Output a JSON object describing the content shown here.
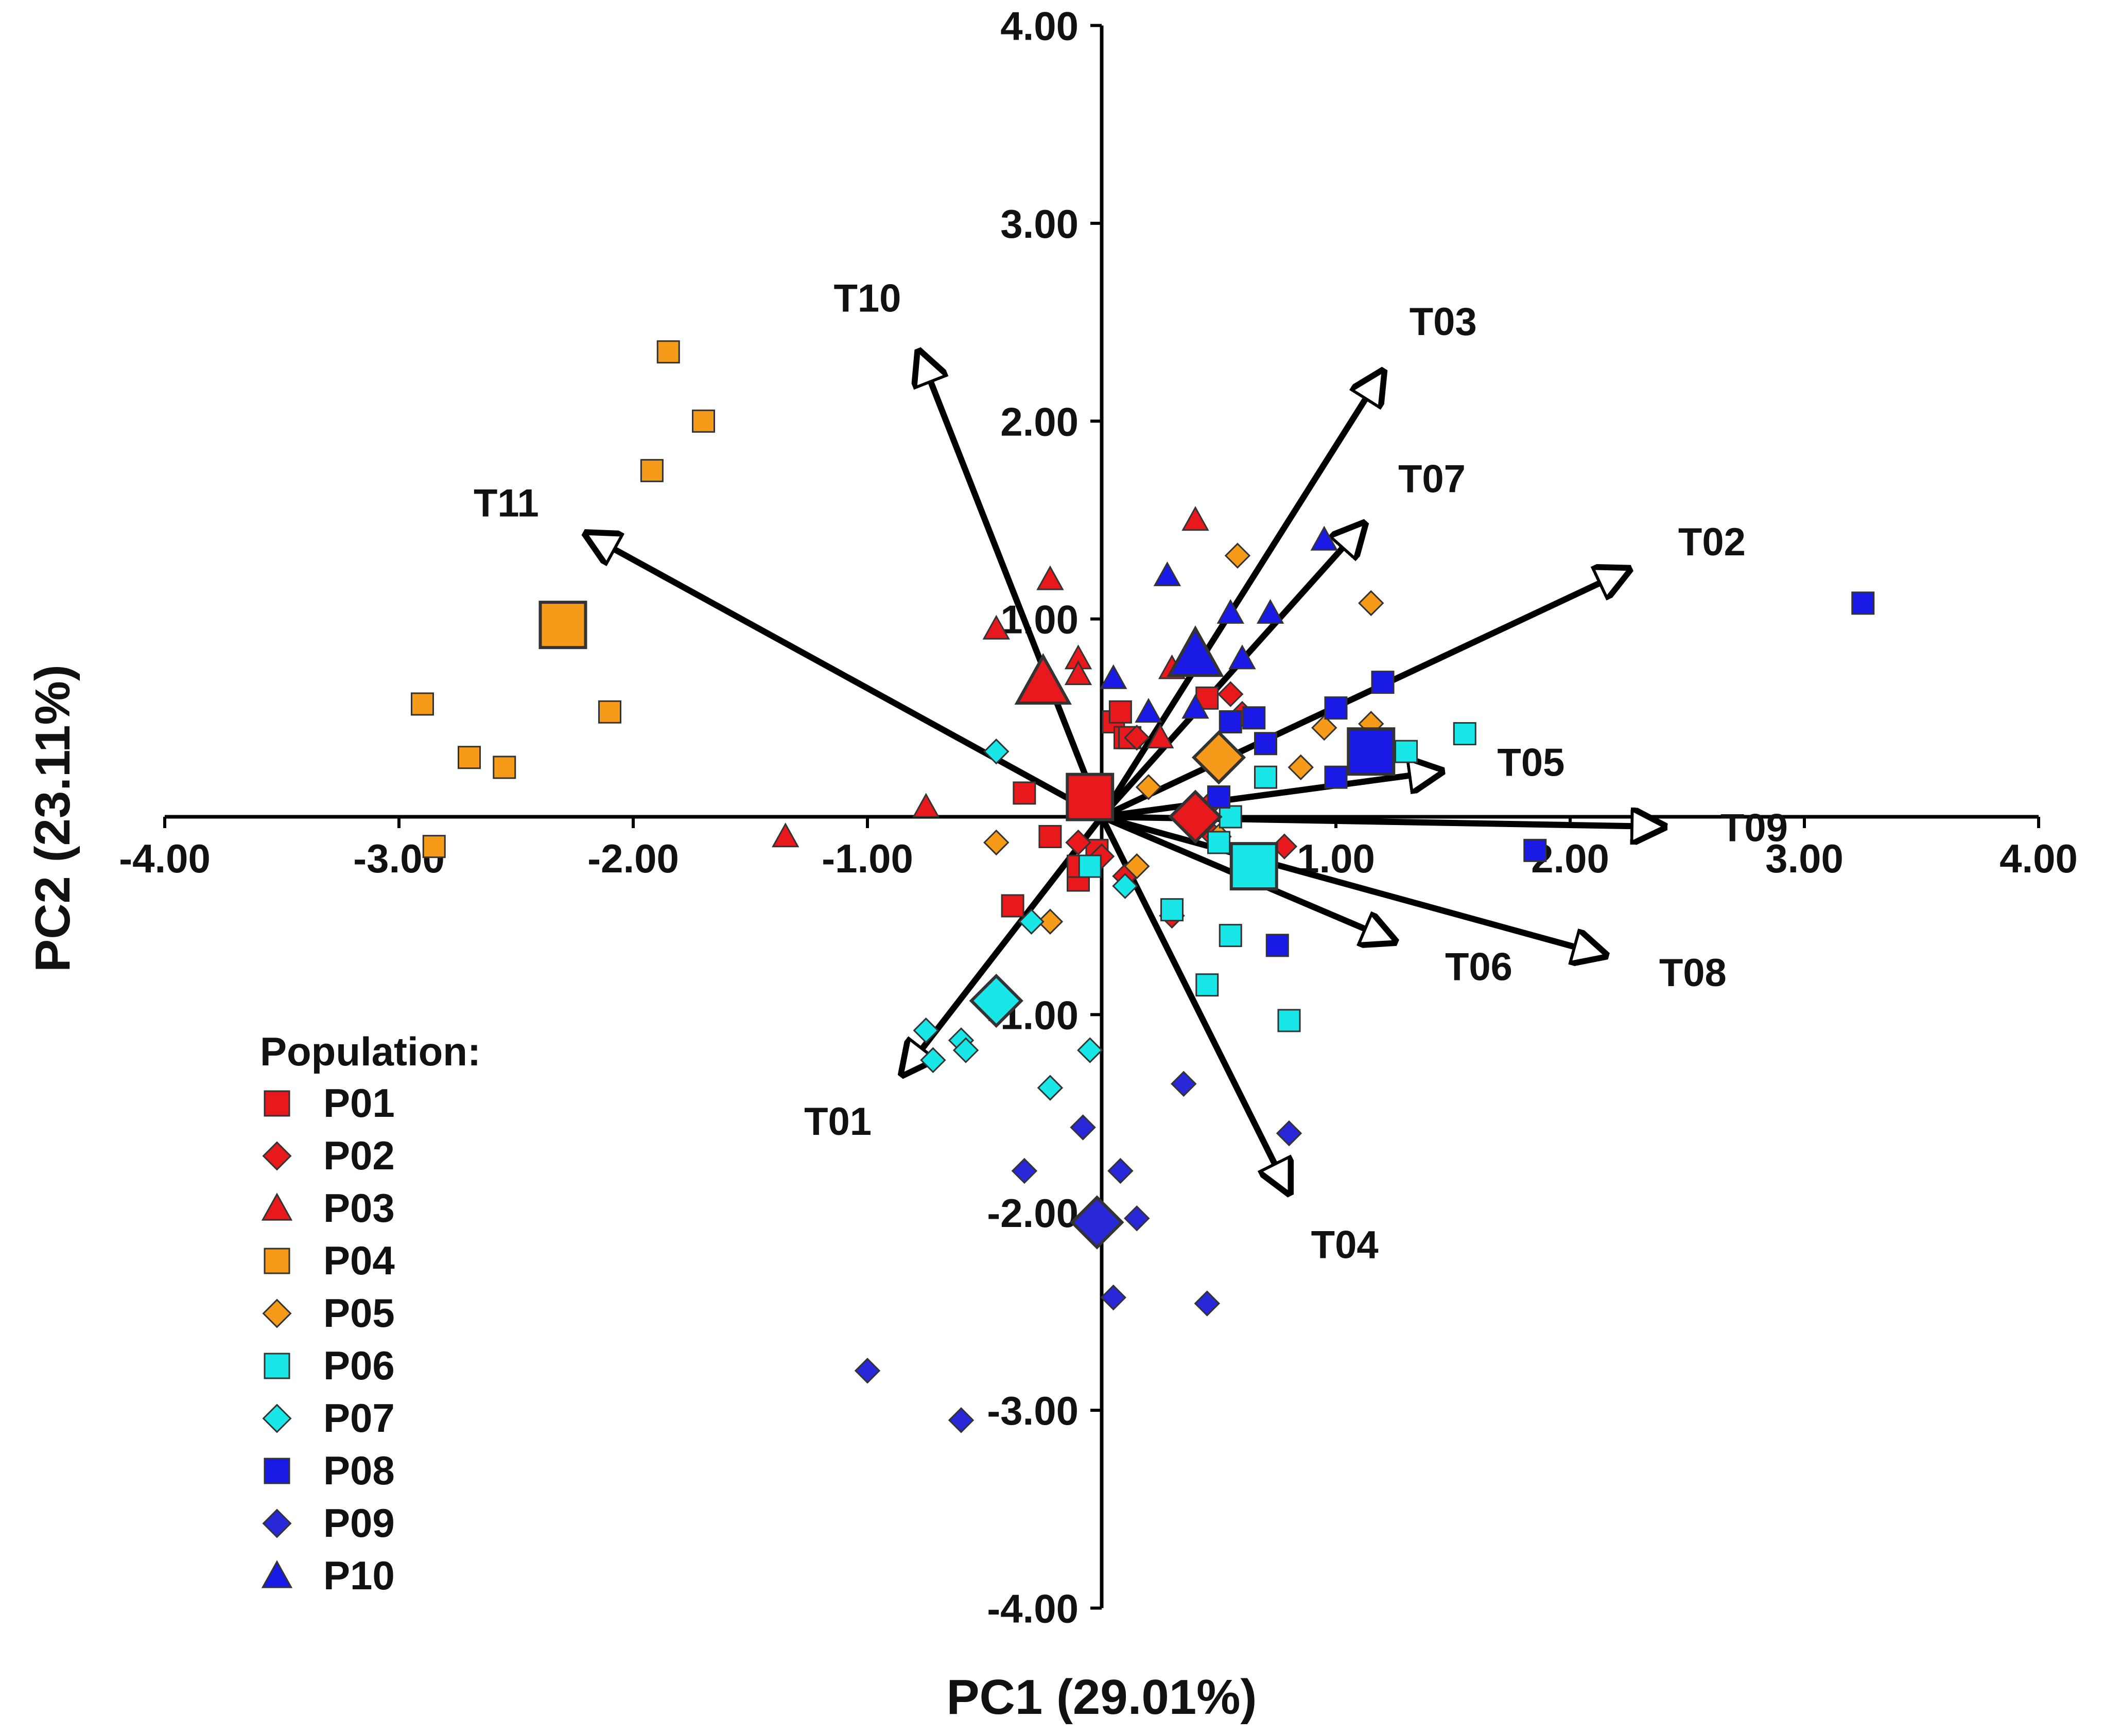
{
  "chart_data": {
    "type": "scatter",
    "subtype": "pca-biplot",
    "title": "",
    "xlabel": "PC1 (29.01%)",
    "ylabel": "PC2 (23.11%)",
    "xlim": [
      -4,
      4
    ],
    "ylim": [
      -4,
      4
    ],
    "xticks": [
      -4,
      -3,
      -2,
      -1,
      1,
      2,
      3,
      4
    ],
    "yticks": [
      4,
      3,
      2,
      1,
      -1,
      -2,
      -3,
      -4
    ],
    "tick_decimals": 2,
    "legend": {
      "title": "Population:",
      "position": "lower-left"
    },
    "vectors": [
      {
        "name": "T01",
        "x": -0.85,
        "y": -1.3
      },
      {
        "name": "T02",
        "x": 2.25,
        "y": 1.25
      },
      {
        "name": "T03",
        "x": 1.2,
        "y": 2.25
      },
      {
        "name": "T04",
        "x": 0.8,
        "y": -1.9
      },
      {
        "name": "T05",
        "x": 1.45,
        "y": 0.23
      },
      {
        "name": "T06",
        "x": 1.25,
        "y": -0.63
      },
      {
        "name": "T07",
        "x": 1.12,
        "y": 1.48
      },
      {
        "name": "T08",
        "x": 2.15,
        "y": -0.7
      },
      {
        "name": "T09",
        "x": 2.4,
        "y": -0.05
      },
      {
        "name": "T10",
        "x": -0.78,
        "y": 2.35
      },
      {
        "name": "T11",
        "x": -2.2,
        "y": 1.43
      }
    ],
    "series": [
      {
        "name": "P01",
        "marker": "square",
        "color": "#e8191c",
        "centroid": {
          "x": -0.05,
          "y": 0.1
        },
        "points": [
          [
            -0.33,
            0.12
          ],
          [
            -0.22,
            -0.1
          ],
          [
            -0.38,
            -0.45
          ],
          [
            -0.1,
            -0.32
          ],
          [
            -0.1,
            -0.25
          ],
          [
            -0.02,
            -0.17
          ],
          [
            0.05,
            0.48
          ],
          [
            0.1,
            0.4
          ],
          [
            0.08,
            0.53
          ],
          [
            0.45,
            0.6
          ],
          [
            0.12,
            0.4
          ]
        ]
      },
      {
        "name": "P02",
        "marker": "diamond",
        "color": "#e8191c",
        "centroid": {
          "x": 0.4,
          "y": 0.0
        },
        "points": [
          [
            -0.1,
            -0.13
          ],
          [
            0.0,
            -0.2
          ],
          [
            0.1,
            -0.3
          ],
          [
            0.3,
            -0.5
          ],
          [
            0.48,
            -0.1
          ],
          [
            0.78,
            -0.15
          ],
          [
            0.55,
            0.62
          ],
          [
            0.6,
            0.52
          ],
          [
            0.15,
            0.4
          ],
          [
            0.45,
            0.05
          ]
        ]
      },
      {
        "name": "P03",
        "marker": "triangle",
        "color": "#e8191c",
        "centroid": {
          "x": -0.25,
          "y": 0.68
        },
        "points": [
          [
            -0.45,
            0.95
          ],
          [
            -0.22,
            1.2
          ],
          [
            -0.1,
            0.8
          ],
          [
            -0.1,
            0.72
          ],
          [
            -0.75,
            0.05
          ],
          [
            -1.35,
            -0.1
          ],
          [
            0.4,
            1.5
          ],
          [
            0.3,
            0.75
          ],
          [
            0.25,
            0.4
          ]
        ]
      },
      {
        "name": "P04",
        "marker": "square",
        "color": "#f59b19",
        "centroid": {
          "x": -2.3,
          "y": 0.97
        },
        "points": [
          [
            -1.85,
            2.35
          ],
          [
            -1.7,
            2.0
          ],
          [
            -1.92,
            1.75
          ],
          [
            -2.1,
            0.53
          ],
          [
            -2.3,
            0.93
          ],
          [
            -2.9,
            0.57
          ],
          [
            -2.7,
            0.3
          ],
          [
            -2.55,
            0.25
          ],
          [
            -2.85,
            -0.15
          ]
        ]
      },
      {
        "name": "P05",
        "marker": "diamond",
        "color": "#f59b19",
        "centroid": {
          "x": 0.5,
          "y": 0.3
        },
        "points": [
          [
            0.58,
            1.32
          ],
          [
            1.15,
            1.08
          ],
          [
            0.95,
            0.45
          ],
          [
            1.15,
            0.47
          ],
          [
            0.85,
            0.25
          ],
          [
            0.2,
            0.15
          ],
          [
            -0.45,
            -0.13
          ],
          [
            -0.22,
            -0.53
          ],
          [
            0.5,
            -0.1
          ],
          [
            0.15,
            -0.25
          ]
        ]
      },
      {
        "name": "P06",
        "marker": "square",
        "color": "#19e6e6",
        "centroid": {
          "x": 0.65,
          "y": -0.25
        },
        "points": [
          [
            1.55,
            0.42
          ],
          [
            1.3,
            0.33
          ],
          [
            0.7,
            0.2
          ],
          [
            0.55,
            0.0
          ],
          [
            0.5,
            -0.13
          ],
          [
            0.3,
            -0.47
          ],
          [
            0.55,
            -0.6
          ],
          [
            0.45,
            -0.85
          ],
          [
            0.8,
            -1.03
          ],
          [
            -0.05,
            -0.25
          ]
        ]
      },
      {
        "name": "P07",
        "marker": "diamond",
        "color": "#19e6e6",
        "centroid": {
          "x": -0.45,
          "y": -0.93
        },
        "points": [
          [
            -0.45,
            0.33
          ],
          [
            -0.3,
            -0.53
          ],
          [
            -0.75,
            -1.08
          ],
          [
            -0.6,
            -1.13
          ],
          [
            -0.58,
            -1.18
          ],
          [
            -0.72,
            -1.23
          ],
          [
            -0.22,
            -1.37
          ],
          [
            -0.05,
            -1.18
          ],
          [
            0.1,
            -0.35
          ]
        ]
      },
      {
        "name": "P08",
        "marker": "square",
        "color": "#1a1ae6",
        "centroid": {
          "x": 1.15,
          "y": 0.33
        },
        "points": [
          [
            3.25,
            1.08
          ],
          [
            1.2,
            0.68
          ],
          [
            1.0,
            0.55
          ],
          [
            0.65,
            0.5
          ],
          [
            0.55,
            0.48
          ],
          [
            0.7,
            0.37
          ],
          [
            1.0,
            0.2
          ],
          [
            1.85,
            -0.17
          ],
          [
            0.75,
            -0.65
          ],
          [
            0.5,
            0.1
          ]
        ]
      },
      {
        "name": "P09",
        "marker": "diamond",
        "color": "#2828d8",
        "centroid": {
          "x": -0.02,
          "y": -2.05
        },
        "points": [
          [
            0.35,
            -1.35
          ],
          [
            0.8,
            -1.6
          ],
          [
            -0.08,
            -1.57
          ],
          [
            0.08,
            -1.79
          ],
          [
            -0.33,
            -1.79
          ],
          [
            0.15,
            -2.03
          ],
          [
            0.05,
            -2.43
          ],
          [
            0.45,
            -2.46
          ],
          [
            -1.0,
            -2.8
          ],
          [
            -0.6,
            -3.05
          ]
        ]
      },
      {
        "name": "P10",
        "marker": "triangle",
        "color": "#1a1ae6",
        "centroid": {
          "x": 0.4,
          "y": 0.82
        },
        "points": [
          [
            0.95,
            1.4
          ],
          [
            0.28,
            1.22
          ],
          [
            0.55,
            1.03
          ],
          [
            0.72,
            1.03
          ],
          [
            0.6,
            0.8
          ],
          [
            0.05,
            0.7
          ],
          [
            0.2,
            0.53
          ],
          [
            0.4,
            0.55
          ]
        ]
      }
    ]
  }
}
